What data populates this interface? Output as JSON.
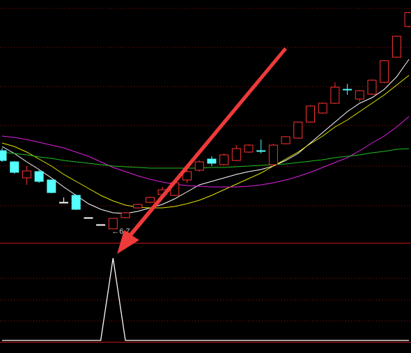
{
  "chart_data": [
    {
      "type": "candlestick",
      "open": [
        7.85,
        7.69,
        7.46,
        7.55,
        7.43,
        7.11,
        7.21,
        6.89,
        6.79,
        6.73,
        6.89,
        7.03,
        7.11,
        7.22,
        7.21,
        7.43,
        7.57,
        7.73,
        7.65,
        7.71,
        7.83,
        7.85,
        7.65,
        7.95,
        8.03,
        8.26,
        8.39,
        8.53,
        8.73,
        8.59,
        8.66,
        8.83,
        9.19,
        9.63
      ],
      "close": [
        7.71,
        7.54,
        7.56,
        7.41,
        7.25,
        7.11,
        7.01,
        6.89,
        6.79,
        6.88,
        6.96,
        7.08,
        7.18,
        7.29,
        7.39,
        7.55,
        7.69,
        7.67,
        7.79,
        7.88,
        7.93,
        7.84,
        7.93,
        8.05,
        8.26,
        8.49,
        8.53,
        8.76,
        8.72,
        8.71,
        8.86,
        9.14,
        9.49,
        9.83
      ],
      "high": [
        7.89,
        7.7,
        7.63,
        7.57,
        7.44,
        7.18,
        7.22,
        6.89,
        6.79,
        6.88,
        6.97,
        7.09,
        7.19,
        7.33,
        7.4,
        7.61,
        7.71,
        7.77,
        7.81,
        7.93,
        7.94,
        8.01,
        7.95,
        8.06,
        8.27,
        8.5,
        8.54,
        8.83,
        8.81,
        8.72,
        8.87,
        9.15,
        9.5,
        9.84
      ],
      "low": [
        7.69,
        7.52,
        7.36,
        7.39,
        7.24,
        7.11,
        7.0,
        6.89,
        6.79,
        6.73,
        6.88,
        7.02,
        7.1,
        7.18,
        7.2,
        7.39,
        7.55,
        7.63,
        7.64,
        7.7,
        7.82,
        7.81,
        7.64,
        7.94,
        8.02,
        8.25,
        8.38,
        8.52,
        8.65,
        8.55,
        8.65,
        8.82,
        9.18,
        9.62
      ],
      "up_color": "#ff3232",
      "down_color": "#54ffff",
      "flat_color": "#ffffff",
      "ylim": [
        6.53,
        10.01
      ],
      "lines": [
        {
          "color": "#ffffff",
          "values": [
            7.91,
            7.81,
            7.69,
            7.58,
            7.46,
            7.33,
            7.21,
            7.09,
            7.01,
            6.96,
            6.95,
            6.98,
            7.03,
            7.08,
            7.16,
            7.26,
            7.36,
            7.41,
            7.46,
            7.51,
            7.55,
            7.58,
            7.63,
            7.71,
            7.81,
            7.96,
            8.11,
            8.26,
            8.41,
            8.53,
            8.61,
            8.73,
            8.91,
            9.16
          ]
        },
        {
          "color": "#e6e600",
          "values": [
            7.96,
            7.91,
            7.83,
            7.73,
            7.63,
            7.51,
            7.41,
            7.31,
            7.21,
            7.13,
            7.07,
            7.04,
            7.03,
            7.03,
            7.05,
            7.09,
            7.14,
            7.21,
            7.29,
            7.37,
            7.45,
            7.53,
            7.63,
            7.73,
            7.83,
            7.95,
            8.06,
            8.19,
            8.29,
            8.41,
            8.53,
            8.65,
            8.79,
            8.93
          ]
        },
        {
          "color": "#e020e0",
          "values": [
            8.06,
            8.04,
            8.01,
            7.97,
            7.93,
            7.89,
            7.83,
            7.77,
            7.69,
            7.61,
            7.55,
            7.49,
            7.44,
            7.4,
            7.37,
            7.35,
            7.34,
            7.33,
            7.33,
            7.33,
            7.34,
            7.36,
            7.39,
            7.43,
            7.48,
            7.54,
            7.61,
            7.68,
            7.75,
            7.85,
            7.96,
            8.06,
            8.19,
            8.34
          ]
        },
        {
          "color": "#20c020",
          "values": [
            7.83,
            7.81,
            7.79,
            7.76,
            7.74,
            7.71,
            7.69,
            7.67,
            7.65,
            7.63,
            7.62,
            7.61,
            7.6,
            7.6,
            7.6,
            7.6,
            7.6,
            7.61,
            7.61,
            7.62,
            7.63,
            7.64,
            7.65,
            7.66,
            7.68,
            7.7,
            7.72,
            7.75,
            7.77,
            7.79,
            7.82,
            7.84,
            7.87,
            7.88
          ]
        }
      ],
      "annotation": "←6.7"
    },
    {
      "type": "line",
      "color": "#ffffff",
      "ylim": [
        0,
        1
      ],
      "values": [
        0,
        0,
        0,
        0,
        0,
        0,
        0,
        0,
        0,
        1,
        0,
        0,
        0,
        0,
        0,
        0,
        0,
        0,
        0,
        0,
        0,
        0,
        0,
        0,
        0,
        0,
        0,
        0,
        0,
        0,
        0,
        0,
        0,
        0
      ]
    }
  ]
}
